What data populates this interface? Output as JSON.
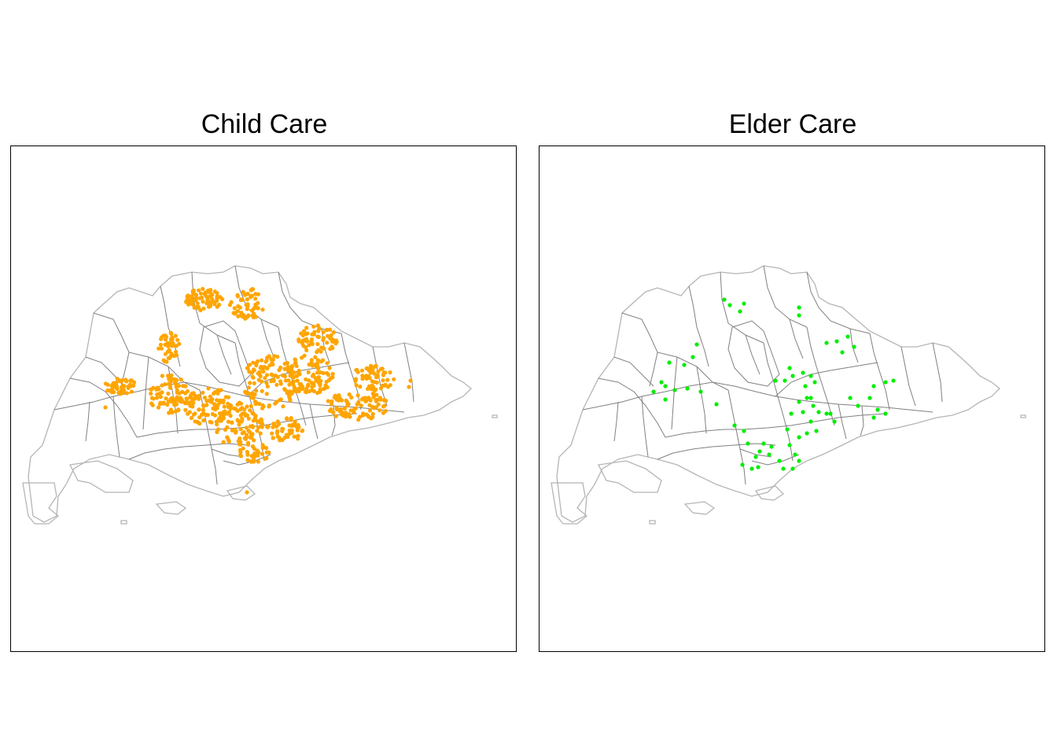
{
  "panels": [
    {
      "title": "Child Care",
      "point_color": "#FFA500"
    },
    {
      "title": "Elder Care",
      "point_color": "#00EE00"
    }
  ],
  "colors": {
    "coastline": "#b5b5b5",
    "boundaries": "#808080",
    "frame": "#000000"
  }
}
